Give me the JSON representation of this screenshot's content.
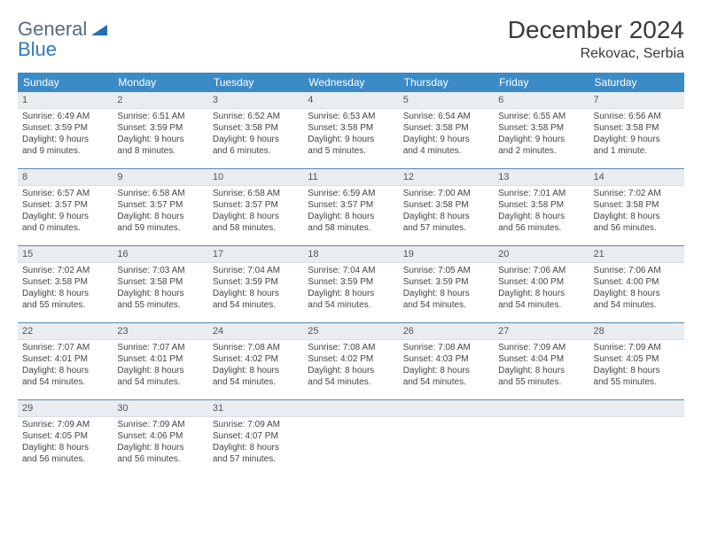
{
  "brand": {
    "word1": "General",
    "word2": "Blue"
  },
  "title": "December 2024",
  "location": "Rekovac, Serbia",
  "colors": {
    "header_bg": "#3b8bc7",
    "header_text": "#ffffff",
    "daynum_bg": "#e9edf0",
    "week_border": "#5a88b0",
    "body_text": "#444444",
    "logo_gray": "#5a6b7a",
    "logo_blue": "#337ab7"
  },
  "weekdays": [
    "Sunday",
    "Monday",
    "Tuesday",
    "Wednesday",
    "Thursday",
    "Friday",
    "Saturday"
  ],
  "weeks": [
    [
      {
        "n": "1",
        "sr": "Sunrise: 6:49 AM",
        "ss": "Sunset: 3:59 PM",
        "d1": "Daylight: 9 hours",
        "d2": "and 9 minutes."
      },
      {
        "n": "2",
        "sr": "Sunrise: 6:51 AM",
        "ss": "Sunset: 3:59 PM",
        "d1": "Daylight: 9 hours",
        "d2": "and 8 minutes."
      },
      {
        "n": "3",
        "sr": "Sunrise: 6:52 AM",
        "ss": "Sunset: 3:58 PM",
        "d1": "Daylight: 9 hours",
        "d2": "and 6 minutes."
      },
      {
        "n": "4",
        "sr": "Sunrise: 6:53 AM",
        "ss": "Sunset: 3:58 PM",
        "d1": "Daylight: 9 hours",
        "d2": "and 5 minutes."
      },
      {
        "n": "5",
        "sr": "Sunrise: 6:54 AM",
        "ss": "Sunset: 3:58 PM",
        "d1": "Daylight: 9 hours",
        "d2": "and 4 minutes."
      },
      {
        "n": "6",
        "sr": "Sunrise: 6:55 AM",
        "ss": "Sunset: 3:58 PM",
        "d1": "Daylight: 9 hours",
        "d2": "and 2 minutes."
      },
      {
        "n": "7",
        "sr": "Sunrise: 6:56 AM",
        "ss": "Sunset: 3:58 PM",
        "d1": "Daylight: 9 hours",
        "d2": "and 1 minute."
      }
    ],
    [
      {
        "n": "8",
        "sr": "Sunrise: 6:57 AM",
        "ss": "Sunset: 3:57 PM",
        "d1": "Daylight: 9 hours",
        "d2": "and 0 minutes."
      },
      {
        "n": "9",
        "sr": "Sunrise: 6:58 AM",
        "ss": "Sunset: 3:57 PM",
        "d1": "Daylight: 8 hours",
        "d2": "and 59 minutes."
      },
      {
        "n": "10",
        "sr": "Sunrise: 6:58 AM",
        "ss": "Sunset: 3:57 PM",
        "d1": "Daylight: 8 hours",
        "d2": "and 58 minutes."
      },
      {
        "n": "11",
        "sr": "Sunrise: 6:59 AM",
        "ss": "Sunset: 3:57 PM",
        "d1": "Daylight: 8 hours",
        "d2": "and 58 minutes."
      },
      {
        "n": "12",
        "sr": "Sunrise: 7:00 AM",
        "ss": "Sunset: 3:58 PM",
        "d1": "Daylight: 8 hours",
        "d2": "and 57 minutes."
      },
      {
        "n": "13",
        "sr": "Sunrise: 7:01 AM",
        "ss": "Sunset: 3:58 PM",
        "d1": "Daylight: 8 hours",
        "d2": "and 56 minutes."
      },
      {
        "n": "14",
        "sr": "Sunrise: 7:02 AM",
        "ss": "Sunset: 3:58 PM",
        "d1": "Daylight: 8 hours",
        "d2": "and 56 minutes."
      }
    ],
    [
      {
        "n": "15",
        "sr": "Sunrise: 7:02 AM",
        "ss": "Sunset: 3:58 PM",
        "d1": "Daylight: 8 hours",
        "d2": "and 55 minutes."
      },
      {
        "n": "16",
        "sr": "Sunrise: 7:03 AM",
        "ss": "Sunset: 3:58 PM",
        "d1": "Daylight: 8 hours",
        "d2": "and 55 minutes."
      },
      {
        "n": "17",
        "sr": "Sunrise: 7:04 AM",
        "ss": "Sunset: 3:59 PM",
        "d1": "Daylight: 8 hours",
        "d2": "and 54 minutes."
      },
      {
        "n": "18",
        "sr": "Sunrise: 7:04 AM",
        "ss": "Sunset: 3:59 PM",
        "d1": "Daylight: 8 hours",
        "d2": "and 54 minutes."
      },
      {
        "n": "19",
        "sr": "Sunrise: 7:05 AM",
        "ss": "Sunset: 3:59 PM",
        "d1": "Daylight: 8 hours",
        "d2": "and 54 minutes."
      },
      {
        "n": "20",
        "sr": "Sunrise: 7:06 AM",
        "ss": "Sunset: 4:00 PM",
        "d1": "Daylight: 8 hours",
        "d2": "and 54 minutes."
      },
      {
        "n": "21",
        "sr": "Sunrise: 7:06 AM",
        "ss": "Sunset: 4:00 PM",
        "d1": "Daylight: 8 hours",
        "d2": "and 54 minutes."
      }
    ],
    [
      {
        "n": "22",
        "sr": "Sunrise: 7:07 AM",
        "ss": "Sunset: 4:01 PM",
        "d1": "Daylight: 8 hours",
        "d2": "and 54 minutes."
      },
      {
        "n": "23",
        "sr": "Sunrise: 7:07 AM",
        "ss": "Sunset: 4:01 PM",
        "d1": "Daylight: 8 hours",
        "d2": "and 54 minutes."
      },
      {
        "n": "24",
        "sr": "Sunrise: 7:08 AM",
        "ss": "Sunset: 4:02 PM",
        "d1": "Daylight: 8 hours",
        "d2": "and 54 minutes."
      },
      {
        "n": "25",
        "sr": "Sunrise: 7:08 AM",
        "ss": "Sunset: 4:02 PM",
        "d1": "Daylight: 8 hours",
        "d2": "and 54 minutes."
      },
      {
        "n": "26",
        "sr": "Sunrise: 7:08 AM",
        "ss": "Sunset: 4:03 PM",
        "d1": "Daylight: 8 hours",
        "d2": "and 54 minutes."
      },
      {
        "n": "27",
        "sr": "Sunrise: 7:09 AM",
        "ss": "Sunset: 4:04 PM",
        "d1": "Daylight: 8 hours",
        "d2": "and 55 minutes."
      },
      {
        "n": "28",
        "sr": "Sunrise: 7:09 AM",
        "ss": "Sunset: 4:05 PM",
        "d1": "Daylight: 8 hours",
        "d2": "and 55 minutes."
      }
    ],
    [
      {
        "n": "29",
        "sr": "Sunrise: 7:09 AM",
        "ss": "Sunset: 4:05 PM",
        "d1": "Daylight: 8 hours",
        "d2": "and 56 minutes."
      },
      {
        "n": "30",
        "sr": "Sunrise: 7:09 AM",
        "ss": "Sunset: 4:06 PM",
        "d1": "Daylight: 8 hours",
        "d2": "and 56 minutes."
      },
      {
        "n": "31",
        "sr": "Sunrise: 7:09 AM",
        "ss": "Sunset: 4:07 PM",
        "d1": "Daylight: 8 hours",
        "d2": "and 57 minutes."
      },
      {
        "n": "",
        "sr": "",
        "ss": "",
        "d1": "",
        "d2": "",
        "empty": true
      },
      {
        "n": "",
        "sr": "",
        "ss": "",
        "d1": "",
        "d2": "",
        "empty": true
      },
      {
        "n": "",
        "sr": "",
        "ss": "",
        "d1": "",
        "d2": "",
        "empty": true
      },
      {
        "n": "",
        "sr": "",
        "ss": "",
        "d1": "",
        "d2": "",
        "empty": true
      }
    ]
  ]
}
